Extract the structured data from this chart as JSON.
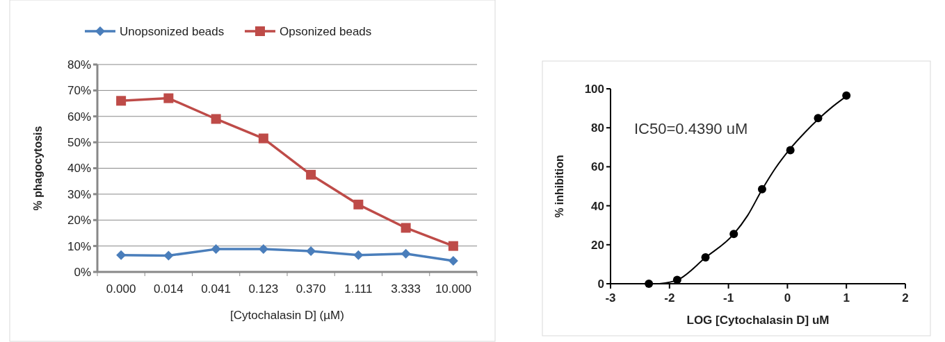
{
  "chart_data": [
    {
      "type": "line",
      "xlabel": "[Cytochalasin D] (µM)",
      "ylabel": "% phagocytosis",
      "categories": [
        "0.000",
        "0.014",
        "0.041",
        "0.123",
        "0.370",
        "1.111",
        "3.333",
        "10.000"
      ],
      "series": [
        {
          "name": "Unopsonized beads",
          "color": "#4a7ebb",
          "marker": "diamond",
          "values": [
            6.5,
            6.3,
            8.8,
            8.8,
            8.0,
            6.5,
            7.0,
            4.3
          ]
        },
        {
          "name": "Opsonized beads",
          "color": "#be4b48",
          "marker": "square",
          "values": [
            66,
            67,
            59,
            51.5,
            37.5,
            26,
            17,
            10
          ]
        }
      ],
      "ylim": [
        0,
        80
      ],
      "yticks": [
        {
          "value": 0,
          "label": "0%"
        },
        {
          "value": 10,
          "label": "10%"
        },
        {
          "value": 20,
          "label": "20%"
        },
        {
          "value": 30,
          "label": "30%"
        },
        {
          "value": 40,
          "label": "40%"
        },
        {
          "value": 50,
          "label": "50%"
        },
        {
          "value": 60,
          "label": "60%"
        },
        {
          "value": 70,
          "label": "70%"
        },
        {
          "value": 80,
          "label": "80%"
        }
      ],
      "grid": "y",
      "legend": "top"
    },
    {
      "type": "scatter",
      "xlabel": "LOG [Cytochalasin D] uM",
      "ylabel": "% inhibition",
      "annotations": [
        "IC50=0.4390 uM"
      ],
      "series": [
        {
          "color": "#000000",
          "marker": "circle",
          "x": [
            -2.35,
            -1.87,
            -1.39,
            -0.91,
            -0.43,
            0.05,
            0.52,
            1.0
          ],
          "values": [
            0,
            2,
            13.5,
            25.5,
            48.5,
            68.5,
            85,
            96.5
          ]
        },
        {
          "type": "line",
          "color": "#000000",
          "marker": "none",
          "x": [
            -2.17,
            -1.86,
            -1.39,
            -0.91,
            -0.675,
            -0.43,
            -0.21,
            0.04,
            0.29,
            0.53,
            0.76,
            1.01
          ],
          "values": [
            0,
            2,
            13.4,
            25.5,
            35,
            48.3,
            59,
            69,
            77.4,
            84.6,
            90.7,
            96.4
          ]
        }
      ],
      "xlim": [
        -3,
        2
      ],
      "xticks": [
        -3,
        -2,
        -1,
        0,
        1,
        2
      ],
      "ylim": [
        0,
        100
      ],
      "yticks": [
        0,
        20,
        40,
        60,
        80,
        100
      ]
    }
  ]
}
